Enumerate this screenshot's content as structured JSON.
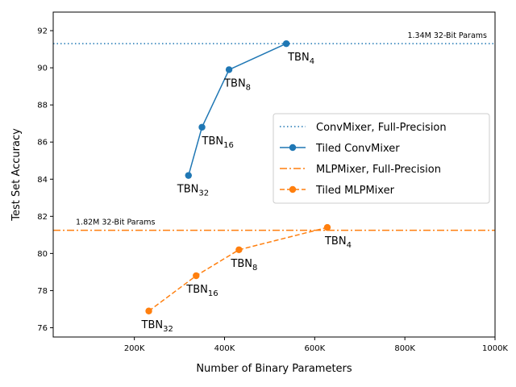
{
  "chart_data": {
    "type": "line",
    "xlabel": "Number of Binary Parameters",
    "ylabel": "Test Set Accuracy",
    "xlim": [
      20000,
      1000000
    ],
    "ylim": [
      75.5,
      93
    ],
    "x_ticks": [
      200000,
      400000,
      600000,
      800000,
      1000000
    ],
    "x_tick_labels": [
      "200K",
      "400K",
      "600K",
      "800K",
      "1000K"
    ],
    "y_ticks": [
      76,
      78,
      80,
      82,
      84,
      86,
      88,
      90,
      92
    ],
    "y_tick_labels": [
      "76",
      "78",
      "80",
      "82",
      "84",
      "86",
      "88",
      "90",
      "92"
    ],
    "grid": false,
    "legend_position": "center-right",
    "reference_lines": [
      {
        "name": "ConvMixer, Full-Precision",
        "y": 91.3,
        "color": "#1f77b4",
        "style": "dotted",
        "annotation": "1.34M 32-Bit Params"
      },
      {
        "name": "MLPMixer, Full-Precision",
        "y": 81.25,
        "color": "#ff7f0e",
        "style": "dashdot",
        "annotation": "1.82M 32-Bit Params"
      }
    ],
    "series": [
      {
        "name": "Tiled ConvMixer",
        "color": "#1f77b4",
        "style": "solid",
        "points": [
          {
            "x": 320000,
            "y": 84.2,
            "label": "TBN",
            "sub": "32"
          },
          {
            "x": 350000,
            "y": 86.8,
            "label": "TBN",
            "sub": "16"
          },
          {
            "x": 410000,
            "y": 89.9,
            "label": "TBN",
            "sub": "8"
          },
          {
            "x": 537000,
            "y": 91.3,
            "label": "TBN",
            "sub": "4"
          }
        ]
      },
      {
        "name": "Tiled MLPMixer",
        "color": "#ff7f0e",
        "style": "dashed",
        "points": [
          {
            "x": 232000,
            "y": 76.9,
            "label": "TBN",
            "sub": "32"
          },
          {
            "x": 337000,
            "y": 78.8,
            "label": "TBN",
            "sub": "16"
          },
          {
            "x": 432000,
            "y": 80.2,
            "label": "TBN",
            "sub": "8"
          },
          {
            "x": 628000,
            "y": 81.4,
            "label": "TBN",
            "sub": "4"
          }
        ]
      }
    ]
  },
  "legend": {
    "items": [
      {
        "label": "ConvMixer, Full-Precision",
        "color": "#1f77b4",
        "style": "dotted",
        "marker": false
      },
      {
        "label": "Tiled ConvMixer",
        "color": "#1f77b4",
        "style": "solid",
        "marker": true
      },
      {
        "label": "MLPMixer, Full-Precision",
        "color": "#ff7f0e",
        "style": "dashdot",
        "marker": false
      },
      {
        "label": "Tiled MLPMixer",
        "color": "#ff7f0e",
        "style": "dashed",
        "marker": true
      }
    ]
  }
}
